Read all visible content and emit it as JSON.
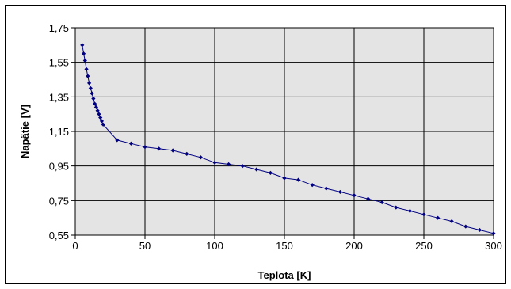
{
  "chart_data": {
    "type": "line",
    "title": "",
    "xlabel": "Teplota [K]",
    "ylabel": "Napätie [V]",
    "xlim": [
      0,
      300
    ],
    "ylim": [
      0.55,
      1.75
    ],
    "xticks": [
      0,
      50,
      100,
      150,
      200,
      250,
      300
    ],
    "yticks": [
      "0,55",
      "0,75",
      "0,95",
      "1,15",
      "1,35",
      "1,55",
      "1,75"
    ],
    "ytick_values": [
      0.55,
      0.75,
      0.95,
      1.15,
      1.35,
      1.55,
      1.75
    ],
    "grid": true,
    "legend": "none",
    "colors": {
      "series": "#000080",
      "plot_bg": "#e4e4e4",
      "grid": "#000000"
    },
    "series": [
      {
        "x": [
          5,
          6,
          7,
          8,
          9,
          10,
          11,
          12,
          13,
          14,
          15,
          16,
          17,
          18,
          19,
          20,
          30,
          40,
          50,
          60,
          70,
          80,
          90,
          100,
          110,
          120,
          130,
          140,
          150,
          160,
          170,
          180,
          190,
          200,
          210,
          220,
          230,
          240,
          250,
          260,
          270,
          280,
          290,
          300
        ],
        "y": [
          1.65,
          1.6,
          1.56,
          1.51,
          1.47,
          1.43,
          1.4,
          1.37,
          1.34,
          1.31,
          1.29,
          1.27,
          1.25,
          1.23,
          1.21,
          1.19,
          1.1,
          1.08,
          1.06,
          1.05,
          1.04,
          1.02,
          1.0,
          0.97,
          0.96,
          0.95,
          0.93,
          0.91,
          0.88,
          0.87,
          0.84,
          0.82,
          0.8,
          0.78,
          0.76,
          0.74,
          0.71,
          0.69,
          0.67,
          0.65,
          0.63,
          0.6,
          0.58,
          0.56
        ]
      }
    ]
  }
}
